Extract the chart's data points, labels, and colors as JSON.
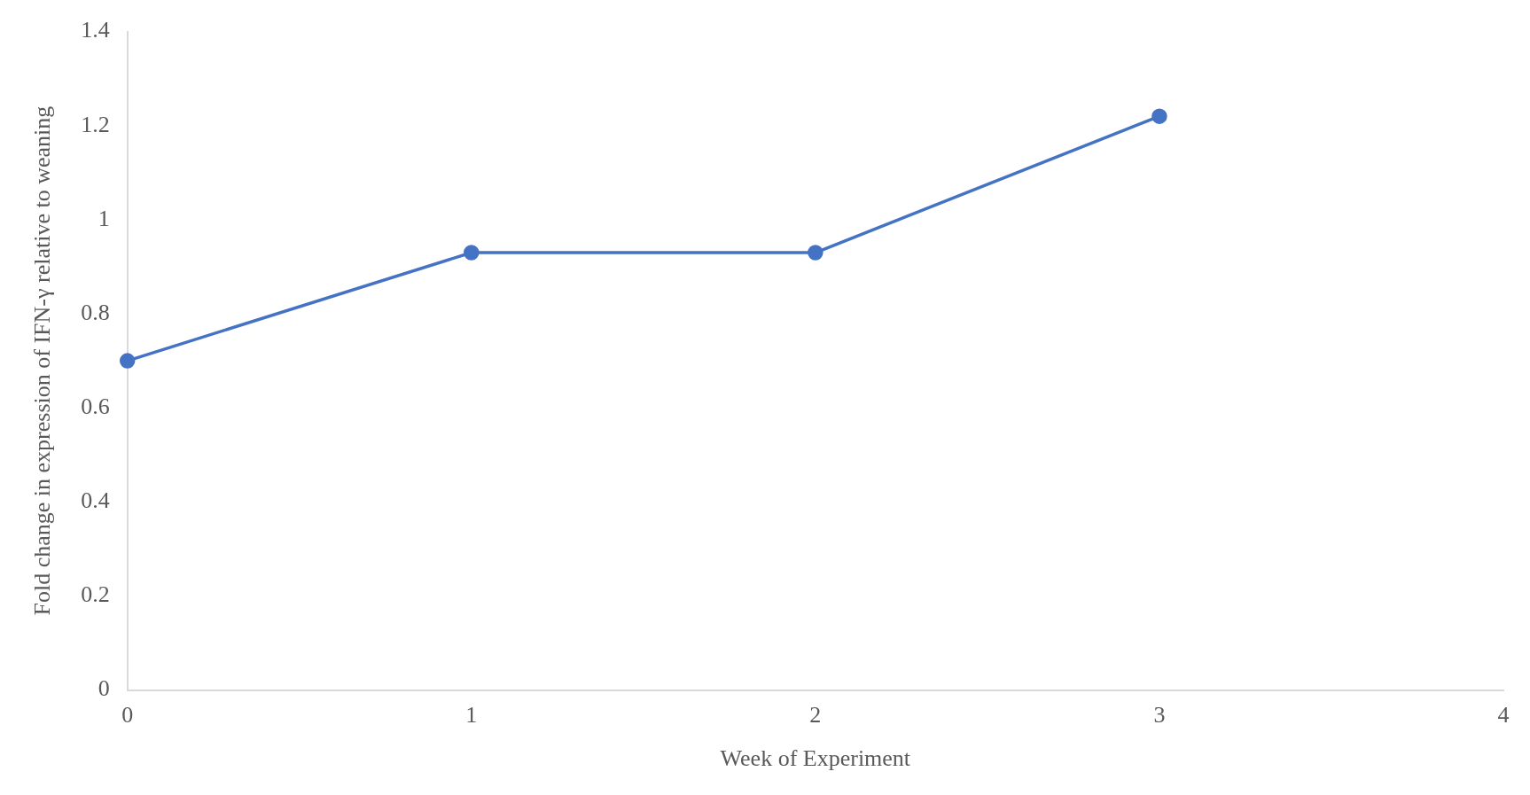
{
  "chart_data": {
    "type": "line",
    "xlabel": "Week of Experiment",
    "ylabel": "Fold change in expression of IFN-γ relative to weaning",
    "x": [
      0,
      1,
      2,
      3
    ],
    "series": [
      {
        "color": "#4472c4",
        "values": [
          0.7,
          0.93,
          0.93,
          1.22
        ]
      }
    ],
    "xlim": [
      0,
      4
    ],
    "xticks": [
      0,
      1,
      2,
      3,
      4
    ],
    "ylim": [
      0,
      1.4
    ],
    "yticks": [
      0,
      0.2,
      0.4,
      0.6,
      0.8,
      1,
      1.2,
      1.4
    ],
    "grid": false,
    "legend": false,
    "marker": "circle",
    "line_style": "solid"
  }
}
